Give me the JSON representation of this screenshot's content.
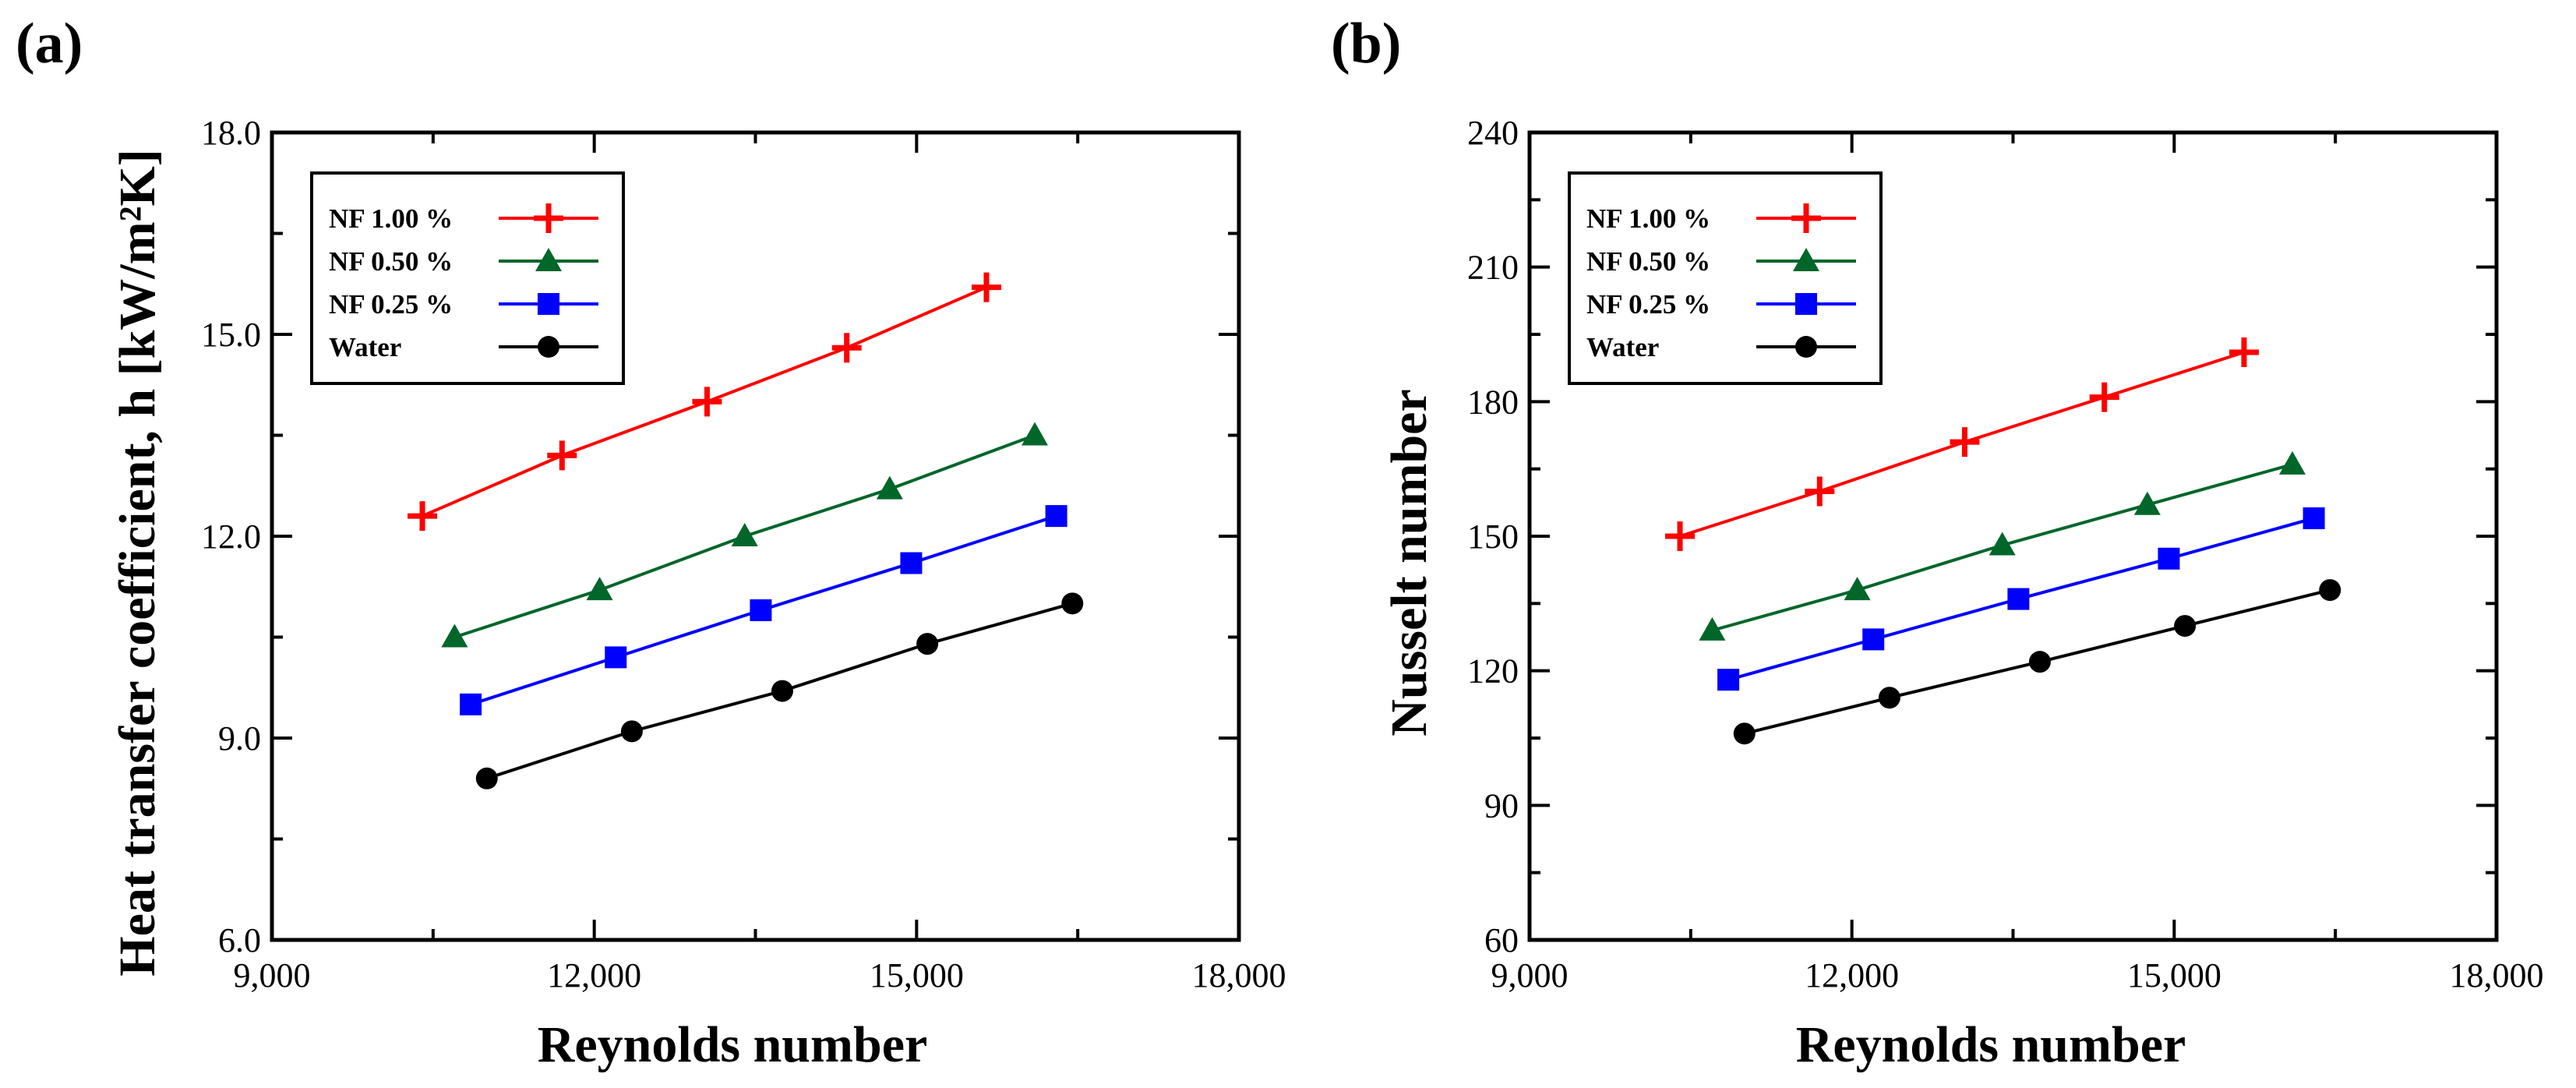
{
  "chart_data": [
    {
      "type": "line",
      "panel_label": "(a)",
      "title": "",
      "xlabel": "Reynolds number",
      "ylabel": "Heat transfer coefficient, h [kW/m²K]",
      "xlim": [
        9000,
        18000
      ],
      "ylim": [
        6.0,
        18.0
      ],
      "xticks": [
        9000,
        12000,
        15000,
        18000
      ],
      "xtick_labels": [
        "9,000",
        "12,000",
        "15,000",
        "18,000"
      ],
      "yticks": [
        6.0,
        9.0,
        12.0,
        15.0,
        18.0
      ],
      "ytick_labels": [
        "6.0",
        "9.0",
        "12.0",
        "15.0",
        "18.0"
      ],
      "grid": false,
      "legend_position": "top-left",
      "series": [
        {
          "name": "NF 1.00 %",
          "color": "#ff0000",
          "marker": "plus",
          "x": [
            10400,
            11700,
            13050,
            14350,
            15650
          ],
          "y": [
            12.3,
            13.2,
            14.0,
            14.8,
            15.7
          ]
        },
        {
          "name": "NF 0.50 %",
          "color": "#006629",
          "marker": "triangle",
          "x": [
            10700,
            12050,
            13400,
            14750,
            16100
          ],
          "y": [
            10.5,
            11.2,
            12.0,
            12.7,
            13.5
          ]
        },
        {
          "name": "NF 0.25 %",
          "color": "#0000ff",
          "marker": "square",
          "x": [
            10850,
            12200,
            13550,
            14950,
            16300
          ],
          "y": [
            9.5,
            10.2,
            10.9,
            11.6,
            12.3
          ]
        },
        {
          "name": "Water",
          "color": "#000000",
          "marker": "circle",
          "x": [
            11000,
            12350,
            13750,
            15100,
            16450
          ],
          "y": [
            8.4,
            9.1,
            9.7,
            10.4,
            11.0
          ]
        }
      ]
    },
    {
      "type": "line",
      "panel_label": "(b)",
      "title": "",
      "xlabel": "Reynolds number",
      "ylabel": "Nusselt number",
      "xlim": [
        9000,
        18000
      ],
      "ylim": [
        60,
        240
      ],
      "xticks": [
        9000,
        12000,
        15000,
        18000
      ],
      "xtick_labels": [
        "9,000",
        "12,000",
        "15,000",
        "18,000"
      ],
      "yticks": [
        60,
        90,
        120,
        150,
        180,
        210,
        240
      ],
      "ytick_labels": [
        "60",
        "90",
        "120",
        "150",
        "180",
        "210",
        "240"
      ],
      "grid": false,
      "legend_position": "top-left",
      "series": [
        {
          "name": "NF 1.00 %",
          "color": "#ff0000",
          "marker": "plus",
          "x": [
            10400,
            11700,
            13050,
            14350,
            15650
          ],
          "y": [
            150,
            160,
            171,
            181,
            191
          ]
        },
        {
          "name": "NF 0.50 %",
          "color": "#006629",
          "marker": "triangle",
          "x": [
            10700,
            12050,
            13400,
            14750,
            16100
          ],
          "y": [
            129,
            138,
            148,
            157,
            166
          ]
        },
        {
          "name": "NF 0.25 %",
          "color": "#0000ff",
          "marker": "square",
          "x": [
            10850,
            12200,
            13550,
            14950,
            16300
          ],
          "y": [
            118,
            127,
            136,
            145,
            154
          ]
        },
        {
          "name": "Water",
          "color": "#000000",
          "marker": "circle",
          "x": [
            11000,
            12350,
            13750,
            15100,
            16450
          ],
          "y": [
            106,
            114,
            122,
            130,
            138
          ]
        }
      ]
    }
  ]
}
